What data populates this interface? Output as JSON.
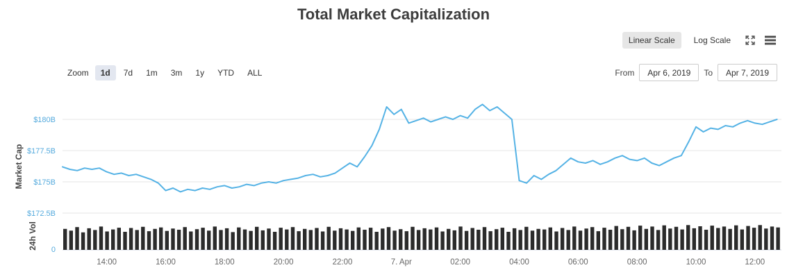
{
  "title": "Total Market Capitalization",
  "colors": {
    "line": "#54b2e5",
    "axis_label": "#54aadd",
    "volume_bar": "#2b2b2b",
    "grid": "#e6e6e6",
    "axis_line": "#ccd3e0",
    "tick_label": "#666666",
    "axis_title": "#444444"
  },
  "toolbar": {
    "linear_label": "Linear Scale",
    "log_label": "Log Scale",
    "selected": "Linear Scale",
    "icons": [
      "fullscreen-icon",
      "hamburger-menu-icon"
    ]
  },
  "range_selector": {
    "zoom_label": "Zoom",
    "buttons": [
      "1d",
      "7d",
      "1m",
      "3m",
      "1y",
      "YTD",
      "ALL"
    ],
    "selected": "1d",
    "from_label": "From",
    "from_value": "Apr 6, 2019",
    "to_label": "To",
    "to_value": "Apr 7, 2019"
  },
  "chart_data": {
    "type": "line",
    "title": "Total Market Capitalization",
    "x_axis": {
      "range_hours": [
        0,
        24.4
      ],
      "ticks": [
        {
          "t": 1.5,
          "label": "14:00"
        },
        {
          "t": 3.5,
          "label": "16:00"
        },
        {
          "t": 5.5,
          "label": "18:00"
        },
        {
          "t": 7.5,
          "label": "20:00"
        },
        {
          "t": 9.5,
          "label": "22:00"
        },
        {
          "t": 11.5,
          "label": "7. Apr"
        },
        {
          "t": 13.5,
          "label": "02:00"
        },
        {
          "t": 15.5,
          "label": "04:00"
        },
        {
          "t": 17.5,
          "label": "06:00"
        },
        {
          "t": 19.5,
          "label": "08:00"
        },
        {
          "t": 21.5,
          "label": "10:00"
        },
        {
          "t": 23.5,
          "label": "12:00"
        }
      ]
    },
    "market_cap_axis": {
      "title": "Market Cap",
      "unit": "USD billions",
      "range": [
        172.5,
        182
      ],
      "ticks": [
        {
          "v": 180,
          "label": "$180B"
        },
        {
          "v": 177.5,
          "label": "$177.5B"
        },
        {
          "v": 175,
          "label": "$175B"
        },
        {
          "v": 172.5,
          "label": "$172.5B"
        }
      ]
    },
    "volume_axis": {
      "title": "24h Vol",
      "ticks": [
        {
          "v": 0,
          "label": "0"
        }
      ]
    },
    "series": [
      {
        "name": "Market Cap",
        "type": "line",
        "color": "#54b2e5",
        "x_start": 0,
        "x_step": 0.25,
        "values": [
          176.2,
          176.0,
          175.9,
          176.1,
          176.0,
          176.1,
          175.8,
          175.6,
          175.7,
          175.5,
          175.6,
          175.4,
          175.2,
          174.9,
          174.3,
          174.5,
          174.2,
          174.4,
          174.3,
          174.5,
          174.4,
          174.6,
          174.7,
          174.5,
          174.6,
          174.8,
          174.7,
          174.9,
          175.0,
          174.9,
          175.1,
          175.2,
          175.3,
          175.5,
          175.6,
          175.4,
          175.5,
          175.7,
          176.1,
          176.5,
          176.2,
          177.0,
          177.9,
          179.2,
          181.0,
          180.4,
          180.8,
          179.7,
          179.9,
          180.1,
          179.8,
          180.0,
          180.2,
          180.0,
          180.3,
          180.1,
          180.8,
          181.2,
          180.7,
          181.0,
          180.5,
          180.0,
          175.1,
          174.9,
          175.5,
          175.2,
          175.6,
          175.9,
          176.4,
          176.9,
          176.6,
          176.5,
          176.7,
          176.4,
          176.6,
          176.9,
          177.1,
          176.8,
          176.7,
          176.9,
          176.5,
          176.3,
          176.6,
          176.9,
          177.1,
          178.2,
          179.4,
          179.0,
          179.3,
          179.2,
          179.5,
          179.4,
          179.7,
          179.9,
          179.7,
          179.6,
          179.8,
          180.0
        ]
      },
      {
        "name": "24h Vol",
        "type": "column",
        "color": "#2b2b2b",
        "relative_heights": [
          0.72,
          0.66,
          0.78,
          0.6,
          0.74,
          0.68,
          0.8,
          0.63,
          0.7,
          0.76,
          0.62,
          0.75,
          0.68,
          0.79,
          0.64,
          0.72,
          0.77,
          0.65,
          0.73,
          0.69,
          0.78,
          0.63,
          0.71,
          0.76,
          0.66,
          0.8,
          0.68,
          0.74,
          0.61,
          0.77,
          0.7,
          0.65,
          0.79,
          0.67,
          0.73,
          0.62,
          0.76,
          0.7,
          0.78,
          0.64,
          0.72,
          0.68,
          0.75,
          0.63,
          0.79,
          0.66,
          0.74,
          0.7,
          0.65,
          0.77,
          0.69,
          0.76,
          0.62,
          0.73,
          0.78,
          0.66,
          0.71,
          0.64,
          0.79,
          0.68,
          0.74,
          0.7,
          0.77,
          0.63,
          0.72,
          0.67,
          0.8,
          0.65,
          0.75,
          0.69,
          0.78,
          0.64,
          0.71,
          0.76,
          0.62,
          0.74,
          0.68,
          0.79,
          0.66,
          0.72,
          0.7,
          0.77,
          0.63,
          0.75,
          0.68,
          0.8,
          0.66,
          0.73,
          0.78,
          0.64,
          0.76,
          0.69,
          0.82,
          0.71,
          0.79,
          0.67,
          0.83,
          0.72,
          0.8,
          0.68,
          0.84,
          0.73,
          0.79,
          0.7,
          0.85,
          0.74,
          0.81,
          0.69,
          0.83,
          0.75,
          0.8,
          0.72,
          0.84,
          0.7,
          0.82,
          0.76,
          0.85,
          0.73,
          0.8,
          0.77
        ]
      }
    ]
  }
}
